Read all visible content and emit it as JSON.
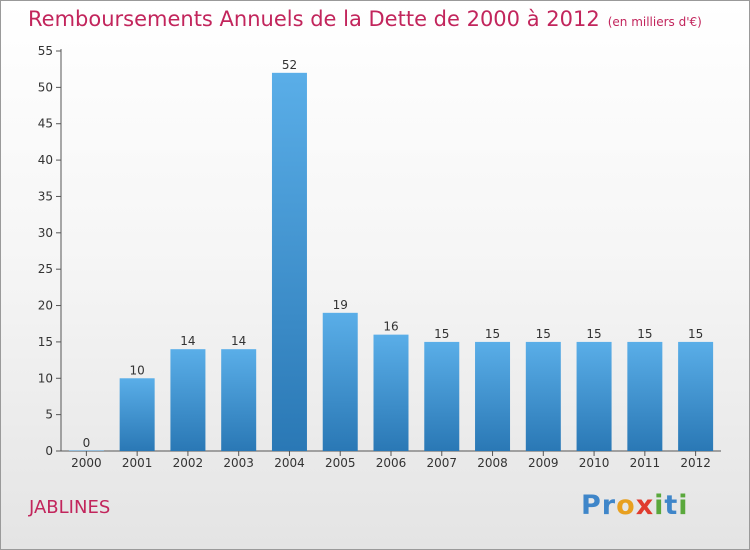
{
  "title": "Remboursements Annuels de la Dette de 2000 à 2012",
  "unit": "(en milliers d'€)",
  "commune": "JABLINES",
  "logo": "Proxiti",
  "colors": {
    "title": "#c2255c",
    "bar_top": "#5aaee8",
    "bar_bottom": "#2a78b5"
  },
  "chart_data": {
    "type": "bar",
    "title": "Remboursements Annuels de la Dette de 2000 à 2012",
    "xlabel": "",
    "ylabel": "",
    "ylim": [
      0,
      55
    ],
    "yticks": [
      0,
      5,
      10,
      15,
      20,
      25,
      30,
      35,
      40,
      45,
      50,
      55
    ],
    "grid": false,
    "categories": [
      "2000",
      "2001",
      "2002",
      "2003",
      "2004",
      "2005",
      "2006",
      "2007",
      "2008",
      "2009",
      "2010",
      "2011",
      "2012"
    ],
    "values": [
      0,
      10,
      14,
      14,
      52,
      19,
      16,
      15,
      15,
      15,
      15,
      15,
      15
    ]
  }
}
